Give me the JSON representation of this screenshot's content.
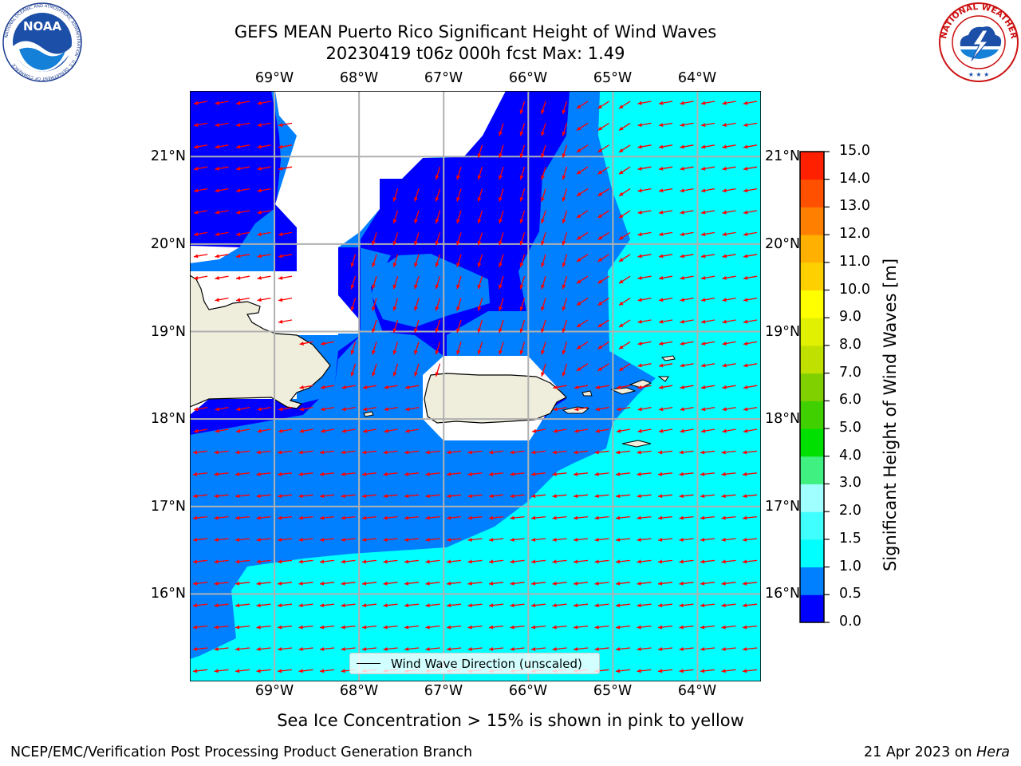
{
  "header": {
    "title_line1": "GEFS MEAN Puerto Rico Significant Height of Wind Waves",
    "title_line2": "20230419 t06z 000h fcst   Max: 1.49"
  },
  "logos": {
    "left": {
      "name": "noaa-logo",
      "text": "NOAA",
      "ring_text": "NATIONAL OCEANIC AND ATMOSPHERIC ADMINISTRATION · U.S. DEPARTMENT OF COMMERCE"
    },
    "right": {
      "name": "nws-logo",
      "ring_text": "NATIONAL WEATHER SERVICE"
    }
  },
  "map": {
    "lon_labels": [
      "69°W",
      "68°W",
      "67°W",
      "66°W",
      "65°W",
      "64°W"
    ],
    "lat_labels": [
      "21°N",
      "20°N",
      "19°N",
      "18°N",
      "17°N",
      "16°N"
    ],
    "extent": {
      "lon_min": -70.0,
      "lon_max": -63.25,
      "lat_min": 15.0,
      "lat_max": 21.75
    },
    "arrow_color": "#ff0000",
    "land_color": "#efeedd",
    "grid_color": "#b0b0b0",
    "legend_label": "Wind Wave Direction (unscaled)"
  },
  "colorbar": {
    "title": "Significant Height of Wind Waves [m]",
    "ticks": [
      "0.0",
      "0.5",
      "1.0",
      "1.5",
      "2.0",
      "3.0",
      "4.0",
      "5.0",
      "6.0",
      "7.0",
      "8.0",
      "9.0",
      "10.0",
      "11.0",
      "12.0",
      "13.0",
      "14.0",
      "15.0"
    ],
    "colors": [
      "#0000ff",
      "#0080ff",
      "#00ffff",
      "#40ffff",
      "#a0ffff",
      "#40f080",
      "#00e000",
      "#40d000",
      "#80d000",
      "#c0e000",
      "#e0f000",
      "#ffff00",
      "#ffd000",
      "#ffb000",
      "#ff8000",
      "#ff5000",
      "#ff2000"
    ]
  },
  "note": "Sea Ice Concentration > 15% is shown in pink to yellow",
  "footer": {
    "left": "NCEP/EMC/Verification Post Processing Product Generation Branch",
    "right_prefix": "21 Apr 2023 on ",
    "right_host": "Hera"
  }
}
